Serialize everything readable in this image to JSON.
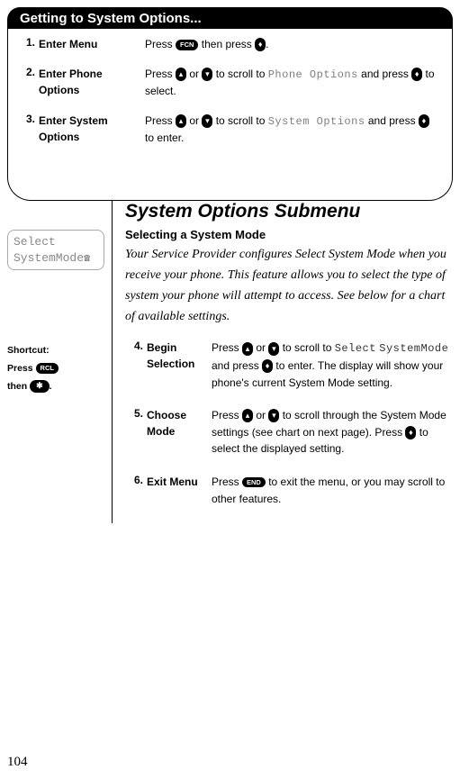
{
  "header": {
    "title": "Getting to System Options..."
  },
  "steps_top": [
    {
      "num": "1.",
      "label": "Enter Menu",
      "instr_parts": [
        "Press ",
        "[FCN]",
        " then press ",
        "[UPDN]",
        "."
      ]
    },
    {
      "num": "2.",
      "label": "Enter Phone Options",
      "instr_parts": [
        "Press ",
        "[UP]",
        " or ",
        "[DN]",
        " to scroll to ",
        "[LCD:Phone Options]",
        " and press ",
        "[UPDN]",
        " to select."
      ]
    },
    {
      "num": "3.",
      "label": "Enter System Options",
      "instr_parts": [
        "Press ",
        "[UP]",
        " or ",
        "[DN]",
        " to scroll to ",
        "[LCD:System Options]",
        " and press ",
        "[UPDN]",
        " to enter."
      ]
    }
  ],
  "lcd_preview": {
    "line1": "Select",
    "line2": "SystemMode"
  },
  "shortcut": {
    "title": "Shortcut:",
    "line1_pre": "Press ",
    "line1_key": "RCL",
    "line2_pre": "then ",
    "line2_key": "✱",
    "line2_post": "."
  },
  "section": {
    "h1": "System Options Submenu",
    "h2": "Selecting a System Mode",
    "body": "Your Service Provider configures Select System Mode when you receive your phone. This feature allows you to select the type of system your phone will attempt to access. See below for a chart of available settings."
  },
  "steps_inner": [
    {
      "num": "4.",
      "label": "Begin Selection",
      "instr_parts": [
        "Press ",
        "[UP]",
        " or ",
        "[DN]",
        " to scroll to ",
        "[LCDD:Select]",
        " ",
        "[LCDD:SystemMode]",
        " and press ",
        "[UPDN]",
        " to enter. The display will show your phone's current System Mode setting."
      ]
    },
    {
      "num": "5.",
      "label": "Choose Mode",
      "instr_parts": [
        "Press ",
        "[UP]",
        " or ",
        "[DN]",
        " to scroll through the System Mode settings (see chart on next page). Press ",
        "[UPDN]",
        " to select the displayed setting."
      ]
    },
    {
      "num": "6.",
      "label": "Exit Menu",
      "instr_parts": [
        "Press ",
        "[END]",
        " to exit the menu, or you may scroll to other features."
      ]
    }
  ],
  "page_number": "104"
}
